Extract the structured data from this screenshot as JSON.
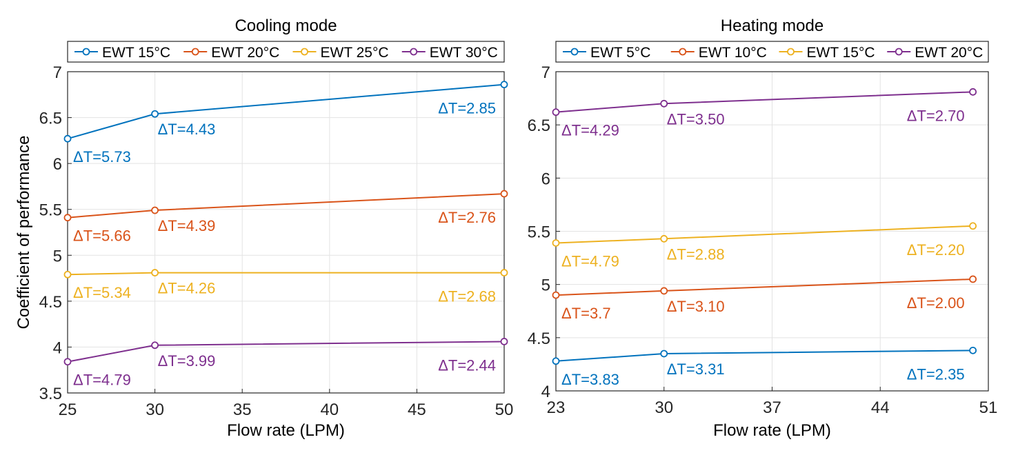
{
  "chart_data": [
    {
      "type": "line",
      "title": "Cooling mode",
      "xlabel": "Flow rate (LPM)",
      "ylabel": "Coefficient of performance",
      "xlim": [
        25,
        50
      ],
      "ylim": [
        3.5,
        7
      ],
      "xticks": [
        25,
        30,
        35,
        40,
        45,
        50
      ],
      "yticks": [
        3.5,
        4,
        4.5,
        5,
        5.5,
        6,
        6.5,
        7
      ],
      "grid": true,
      "legend_placement": "top",
      "x": [
        25,
        30,
        50
      ],
      "series": [
        {
          "name": "EWT 15°C",
          "color": "#0072BD",
          "values": [
            6.27,
            6.54,
            6.86
          ],
          "labels": [
            "ΔT=5.73",
            "ΔT=4.43",
            "ΔT=2.85"
          ]
        },
        {
          "name": "EWT 20°C",
          "color": "#D95319",
          "values": [
            5.41,
            5.49,
            5.67
          ],
          "labels": [
            "ΔT=5.66",
            "ΔT=4.39",
            "ΔT=2.76"
          ]
        },
        {
          "name": "EWT 25°C",
          "color": "#EDB120",
          "values": [
            4.79,
            4.81,
            4.81
          ],
          "labels": [
            "ΔT=5.34",
            "ΔT=4.26",
            "ΔT=2.68"
          ]
        },
        {
          "name": "EWT 30°C",
          "color": "#7E2F8E",
          "values": [
            3.84,
            4.02,
            4.06
          ],
          "labels": [
            "ΔT=4.79",
            "ΔT=3.99",
            "ΔT=2.44"
          ]
        }
      ]
    },
    {
      "type": "line",
      "title": "Heating mode",
      "xlabel": "Flow rate (LPM)",
      "ylabel": "",
      "xlim": [
        23,
        51
      ],
      "ylim": [
        4,
        7
      ],
      "xticks": [
        23,
        30,
        37,
        44,
        51
      ],
      "yticks": [
        4,
        4.5,
        5,
        5.5,
        6,
        6.5,
        7
      ],
      "grid": true,
      "legend_placement": "top",
      "x": [
        23,
        30,
        50
      ],
      "series": [
        {
          "name": "EWT 5°C",
          "color": "#0072BD",
          "values": [
            4.28,
            4.35,
            4.38
          ],
          "labels": [
            "ΔT=3.83",
            "ΔT=3.31",
            "ΔT=2.35"
          ]
        },
        {
          "name": "EWT 10°C",
          "color": "#D95319",
          "values": [
            4.9,
            4.94,
            5.05
          ],
          "labels": [
            "ΔT=3.7",
            "ΔT=3.10",
            "ΔT=2.00"
          ]
        },
        {
          "name": "EWT 15°C",
          "color": "#EDB120",
          "values": [
            5.39,
            5.43,
            5.55
          ],
          "labels": [
            "ΔT=4.79",
            "ΔT=2.88",
            "ΔT=2.20"
          ]
        },
        {
          "name": "EWT 20°C",
          "color": "#7E2F8E",
          "values": [
            6.62,
            6.7,
            6.81
          ],
          "labels": [
            "ΔT=4.29",
            "ΔT=3.50",
            "ΔT=2.70"
          ]
        }
      ]
    }
  ]
}
